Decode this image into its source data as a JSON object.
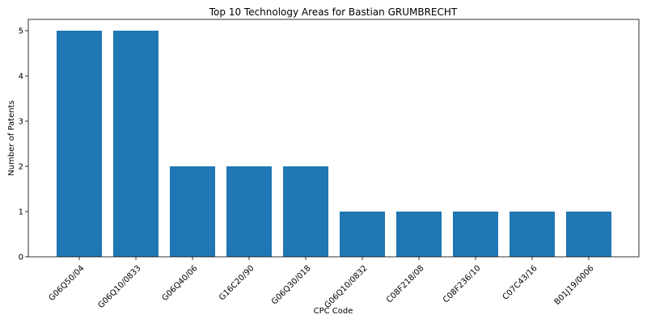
{
  "chart_data": {
    "type": "bar",
    "title": "Top 10 Technology Areas for Bastian GRUMBRECHT",
    "xlabel": "CPC Code",
    "ylabel": "Number of Patents",
    "categories": [
      "G06Q50/04",
      "G06Q10/0833",
      "G06Q40/06",
      "G16C20/90",
      "G06Q30/018",
      "G06Q10/0832",
      "C08F218/08",
      "C08F236/10",
      "C07C43/16",
      "B01J19/0006"
    ],
    "values": [
      5,
      5,
      2,
      2,
      2,
      1,
      1,
      1,
      1,
      1
    ],
    "ylim": [
      0,
      5.25
    ],
    "yticks": [
      0,
      1,
      2,
      3,
      4,
      5
    ],
    "bar_color": "#1f77b4",
    "grid": false,
    "legend": "none"
  }
}
